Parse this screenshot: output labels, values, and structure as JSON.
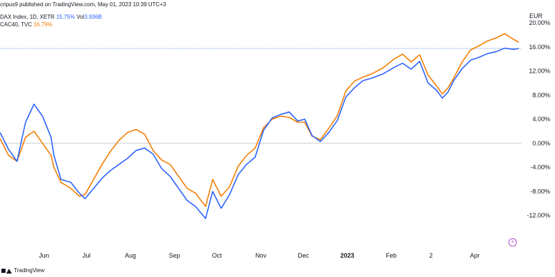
{
  "header": {
    "published": "cripus9 published on TradingView.com, May 01, 2023 10:39 UTC+3",
    "line1_name": "DAX Index, 1D, XETR",
    "line1_value": "15.75%",
    "line1_vol_label": "Vol",
    "line1_vol_value": "3.936B",
    "line2_name": "CAC40, TVC",
    "line2_value": "16.79%"
  },
  "footer": {
    "brand": "TradingView"
  },
  "currency": "EUR",
  "colors": {
    "dax": "#2962ff",
    "cac": "#f57c00",
    "axis_text": "#131722",
    "zero_line": "#d1d4dc"
  },
  "chart_data": {
    "type": "line",
    "y_unit": "%",
    "ylim": [
      -16,
      20
    ],
    "y_ticks": [
      "20.00%",
      "16.00%",
      "12.00%",
      "8.00%",
      "4.00%",
      "0.00%",
      "-4.00%",
      "-8.00%",
      "-12.00%"
    ],
    "y_tick_values": [
      20,
      16,
      12,
      8,
      4,
      0,
      -4,
      -8,
      -12
    ],
    "x_ticks": [
      "Jun",
      "Jul",
      "Aug",
      "Sep",
      "Oct",
      "Nov",
      "Dec",
      "2023",
      "Feb",
      "2",
      "Apr"
    ],
    "x_tick_days": [
      31,
      61,
      92,
      123,
      153,
      184,
      214,
      245,
      276,
      304,
      335
    ],
    "x_range_days": [
      0,
      368
    ],
    "x_reference": "trading days from start, approx. May 2022 to end Apr 2023",
    "current_value_line": 15.75,
    "series": [
      {
        "name": "DAX Index, 1D, XETR",
        "x": [
          0,
          6,
          12,
          18,
          24,
          30,
          36,
          38,
          43,
          50,
          56,
          60,
          66,
          72,
          78,
          84,
          90,
          96,
          102,
          108,
          114,
          120,
          126,
          132,
          138,
          145,
          150,
          156,
          162,
          168,
          174,
          180,
          186,
          192,
          198,
          204,
          210,
          215,
          220,
          226,
          232,
          238,
          244,
          250,
          256,
          262,
          270,
          278,
          284,
          290,
          296,
          302,
          308,
          312,
          316,
          320,
          326,
          332,
          338,
          344,
          350,
          356,
          362,
          366
        ],
        "values": [
          1.8,
          -1,
          -3,
          3.5,
          6.5,
          4.5,
          1,
          -2,
          -6,
          -6.5,
          -8.3,
          -9.2,
          -7.5,
          -5.8,
          -4.5,
          -3.5,
          -2.5,
          -1.2,
          -0.8,
          -1.8,
          -4.2,
          -5.5,
          -7.5,
          -9.5,
          -10.5,
          -12.5,
          -8,
          -10.8,
          -8.5,
          -5.2,
          -3.5,
          -2.3,
          2.2,
          4.2,
          4.8,
          5.2,
          3.7,
          4,
          1.3,
          0.3,
          1.8,
          3.8,
          7.7,
          9.2,
          10.4,
          10.8,
          11.5,
          12.6,
          13.3,
          12.3,
          13.6,
          10,
          8.8,
          7.5,
          8.5,
          10.4,
          12.4,
          13.8,
          14.3,
          14.9,
          15.2,
          15.8,
          15.6,
          15.75
        ]
      },
      {
        "name": "CAC40, TVC",
        "x": [
          0,
          6,
          12,
          18,
          24,
          30,
          36,
          38,
          43,
          50,
          56,
          60,
          66,
          72,
          78,
          84,
          90,
          96,
          102,
          108,
          114,
          120,
          126,
          132,
          138,
          145,
          150,
          156,
          162,
          168,
          174,
          180,
          186,
          192,
          198,
          204,
          210,
          215,
          220,
          226,
          232,
          238,
          244,
          250,
          256,
          262,
          270,
          278,
          284,
          290,
          296,
          302,
          308,
          312,
          316,
          320,
          326,
          332,
          338,
          344,
          350,
          356,
          362,
          366
        ],
        "values": [
          0.8,
          -2,
          -3,
          1,
          2,
          0,
          -2,
          -4,
          -6.5,
          -7.5,
          -8.8,
          -8.5,
          -6,
          -3.5,
          -1.3,
          0.5,
          1.8,
          2.3,
          1.5,
          -1.2,
          -2.8,
          -3.5,
          -5.5,
          -7.5,
          -8.3,
          -10.5,
          -6,
          -8.8,
          -7.2,
          -3.8,
          -2,
          -0.8,
          2.6,
          4,
          4.5,
          4.3,
          3.5,
          3.5,
          1.2,
          0.6,
          2.5,
          4.6,
          8.7,
          10.3,
          11,
          11.5,
          12.5,
          14,
          14.8,
          13.5,
          14.7,
          11.3,
          9.5,
          8.2,
          9.2,
          10.8,
          13.5,
          15.5,
          16.2,
          17,
          17.5,
          18.2,
          17.3,
          16.79
        ]
      }
    ]
  }
}
